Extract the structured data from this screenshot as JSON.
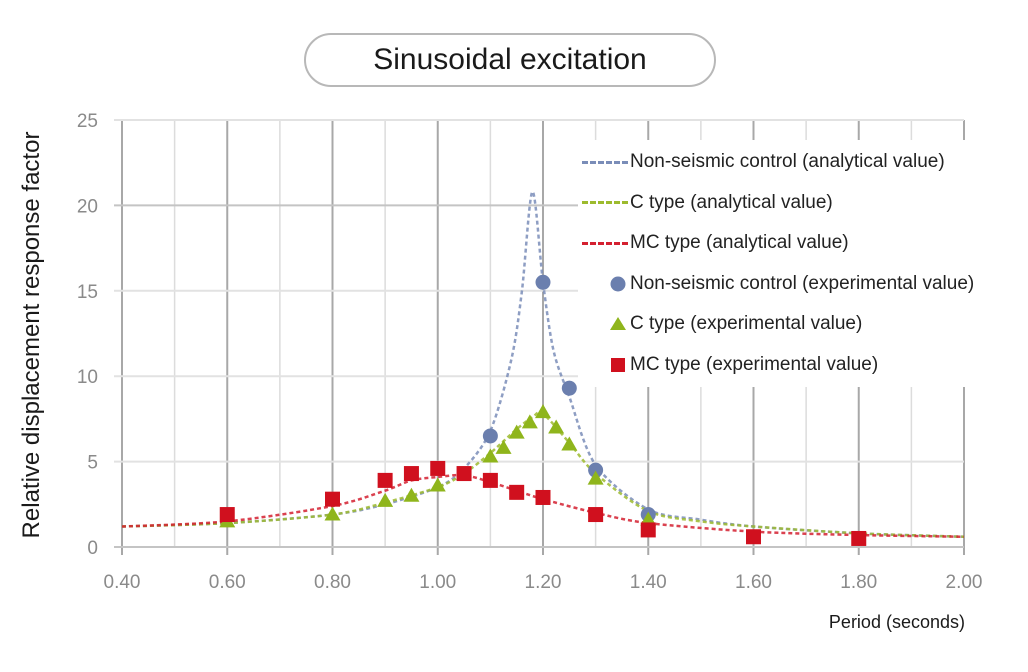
{
  "chart_data": {
    "type": "line",
    "title": "Sinusoidal excitation",
    "xlabel": "Period (seconds)",
    "ylabel": "Relative displacement response factor",
    "xlim": [
      0.4,
      2.0
    ],
    "ylim": [
      0,
      25
    ],
    "x_ticks": [
      "0.40",
      "0.60",
      "0.80",
      "1.00",
      "1.20",
      "1.40",
      "1.60",
      "1.80",
      "2.00"
    ],
    "y_ticks": [
      "0",
      "5",
      "10",
      "15",
      "20",
      "25"
    ],
    "grid": true,
    "legend_position": "top-right",
    "series": [
      {
        "name": "Non-seismic control (analytical value)",
        "kind": "line",
        "style": "dashed",
        "color": "#7a8db8",
        "x": [
          0.4,
          0.6,
          0.8,
          0.9,
          1.0,
          1.05,
          1.1,
          1.14,
          1.16,
          1.18,
          1.2,
          1.22,
          1.25,
          1.3,
          1.4,
          1.5,
          1.6,
          1.8,
          2.0
        ],
        "y": [
          1.2,
          1.4,
          1.9,
          2.5,
          3.5,
          4.6,
          6.8,
          11.0,
          15.0,
          20.8,
          15.5,
          11.5,
          8.8,
          4.8,
          2.2,
          1.6,
          1.2,
          0.8,
          0.6
        ]
      },
      {
        "name": "C type (analytical value)",
        "kind": "line",
        "style": "dashed",
        "color": "#9dbb2e",
        "x": [
          0.4,
          0.6,
          0.8,
          0.9,
          1.0,
          1.05,
          1.1,
          1.15,
          1.18,
          1.2,
          1.25,
          1.3,
          1.4,
          1.5,
          1.6,
          1.8,
          2.0
        ],
        "y": [
          1.2,
          1.4,
          1.9,
          2.6,
          3.5,
          4.3,
          5.5,
          6.9,
          7.6,
          7.8,
          6.1,
          4.3,
          2.1,
          1.5,
          1.2,
          0.8,
          0.6
        ]
      },
      {
        "name": "MC type (analytical value)",
        "kind": "line",
        "style": "dashed",
        "color": "#d42030",
        "x": [
          0.4,
          0.6,
          0.8,
          0.9,
          0.95,
          1.0,
          1.05,
          1.1,
          1.15,
          1.2,
          1.3,
          1.4,
          1.6,
          1.8,
          2.0
        ],
        "y": [
          1.2,
          1.5,
          2.4,
          3.3,
          3.9,
          4.1,
          4.2,
          3.8,
          3.3,
          2.8,
          2.0,
          1.4,
          0.9,
          0.7,
          0.6
        ]
      },
      {
        "name": "Non-seismic control (experimental value)",
        "kind": "scatter",
        "marker": "circle",
        "color": "#6b7fae",
        "x": [
          1.1,
          1.2,
          1.25,
          1.3,
          1.4
        ],
        "y": [
          6.5,
          15.5,
          9.3,
          4.5,
          1.9
        ]
      },
      {
        "name": "C type (experimental value)",
        "kind": "scatter",
        "marker": "triangle",
        "color": "#8fb51c",
        "x": [
          0.6,
          0.8,
          0.9,
          0.95,
          1.0,
          1.1,
          1.125,
          1.15,
          1.175,
          1.2,
          1.225,
          1.25,
          1.3,
          1.4
        ],
        "y": [
          1.5,
          1.9,
          2.7,
          3.0,
          3.6,
          5.3,
          5.8,
          6.7,
          7.3,
          7.9,
          7.0,
          6.0,
          4.0,
          1.6
        ]
      },
      {
        "name": "MC type (experimental value)",
        "kind": "scatter",
        "marker": "square",
        "color": "#d0101e",
        "x": [
          0.6,
          0.8,
          0.9,
          0.95,
          1.0,
          1.05,
          1.1,
          1.15,
          1.2,
          1.3,
          1.4,
          1.6,
          1.8
        ],
        "y": [
          1.9,
          2.8,
          3.9,
          4.3,
          4.6,
          4.3,
          3.9,
          3.2,
          2.9,
          1.9,
          1.0,
          0.6,
          0.5
        ]
      }
    ]
  }
}
